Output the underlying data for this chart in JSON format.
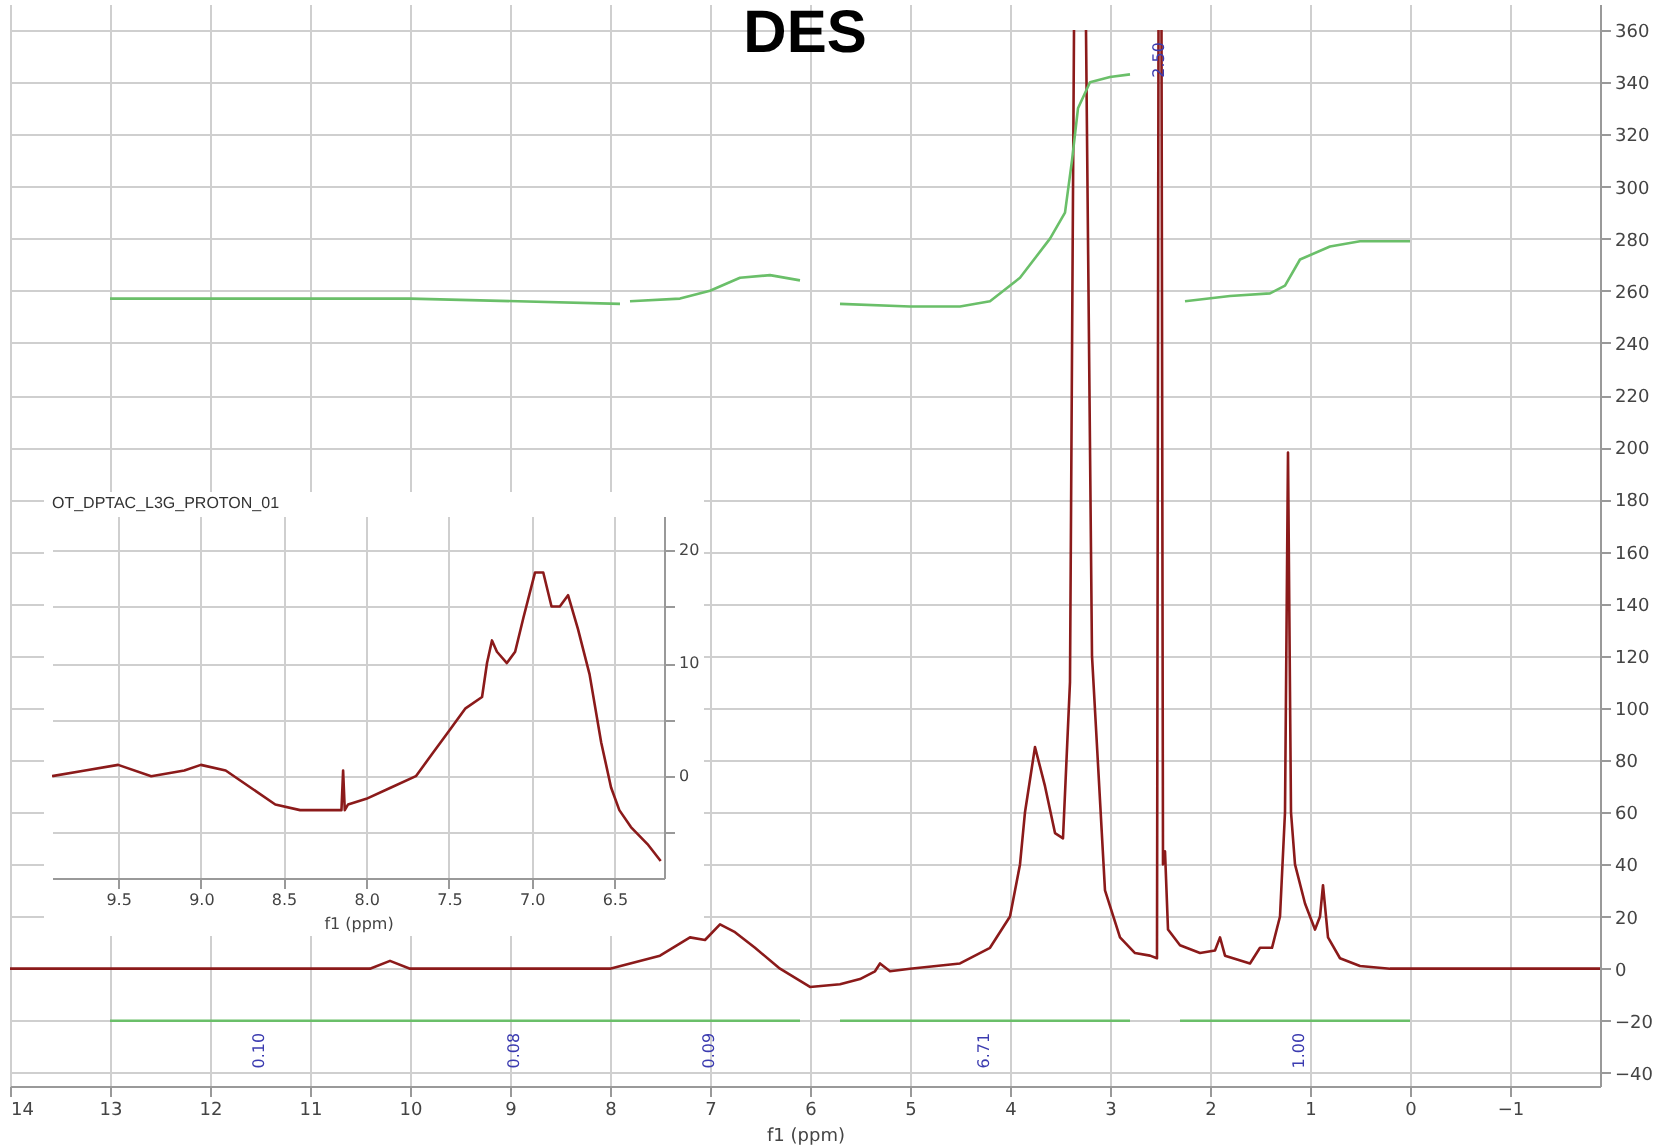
{
  "chart_data": [
    {
      "type": "line",
      "title": "DES",
      "xlabel": "f1 (ppm)",
      "xlim": [
        14,
        -1.9
      ],
      "xticks": [
        14,
        13,
        12,
        11,
        10,
        9,
        8,
        7,
        6,
        5,
        4,
        3,
        2,
        1,
        0,
        -1
      ],
      "ylim": [
        -45,
        370
      ],
      "yticks": [
        -40,
        -20,
        0,
        20,
        40,
        60,
        80,
        100,
        120,
        140,
        160,
        180,
        200,
        220,
        240,
        260,
        280,
        300,
        320,
        340,
        360
      ],
      "grid": true,
      "series": [
        {
          "color": "#8b1a1a",
          "x": [
            14,
            12,
            10.4,
            10.2,
            10,
            8.5,
            8,
            7.5,
            7.2,
            7.05,
            6.9,
            6.75,
            6.55,
            6.3,
            6.0,
            5.7,
            5.5,
            5.35,
            5.3,
            5.2,
            5.0,
            4.5,
            4.2,
            4.0,
            3.9,
            3.85,
            3.75,
            3.65,
            3.55,
            3.47,
            3.4,
            3.36,
            3.33,
            3.29,
            3.24,
            3.18,
            3.05,
            2.9,
            2.75,
            2.6,
            2.53,
            2.515,
            2.51,
            2.49,
            2.485,
            2.47,
            2.45,
            2.42,
            2.3,
            2.1,
            1.95,
            1.9,
            1.85,
            1.6,
            1.5,
            1.38,
            1.3,
            1.25,
            1.22,
            1.19,
            1.15,
            1.05,
            0.95,
            0.9,
            0.87,
            0.82,
            0.7,
            0.5,
            0.2,
            -1.9
          ],
          "values": [
            0,
            0,
            0,
            3,
            0,
            0,
            0,
            5,
            12,
            11,
            17,
            14,
            8,
            0,
            -7,
            -6,
            -4,
            -1,
            2,
            -1,
            0,
            2,
            8,
            20,
            40,
            60,
            85,
            70,
            52,
            50,
            110,
            360,
            null,
            null,
            360,
            120,
            30,
            12,
            6,
            5,
            4,
            360,
            null,
            null,
            360,
            40,
            45,
            15,
            9,
            6,
            7,
            12,
            5,
            2,
            8,
            8,
            20,
            60,
            198,
            60,
            40,
            25,
            15,
            20,
            32,
            12,
            4,
            1,
            0,
            0
          ]
        },
        {
          "color": "#6abf69",
          "x": [
            13,
            10,
            7.9
          ],
          "values": [
            257,
            257,
            255
          ]
        },
        {
          "color": "#6abf69",
          "x": [
            7.8,
            7.3,
            7.0,
            6.7,
            6.4,
            6.1
          ],
          "values": [
            256,
            257,
            260,
            265,
            266,
            264
          ]
        },
        {
          "color": "#6abf69",
          "x": [
            5.7,
            5.0,
            4.5,
            4.2,
            3.9,
            3.6,
            3.45,
            3.38,
            3.32,
            3.2,
            3.0,
            2.8
          ],
          "values": [
            255,
            254,
            254,
            256,
            265,
            280,
            290,
            310,
            330,
            340,
            342,
            343
          ]
        },
        {
          "color": "#6abf69",
          "x": [
            2.25,
            1.8,
            1.4,
            1.25,
            1.1,
            0.8,
            0.5,
            0
          ],
          "values": [
            256,
            258,
            259,
            262,
            272,
            277,
            279,
            279
          ]
        },
        {
          "color": "#6abf69",
          "x": [
            13,
            10,
            7.9,
            6.1
          ],
          "values": [
            -20,
            -20,
            -20,
            -20
          ]
        },
        {
          "color": "#6abf69",
          "x": [
            5.7,
            4.3,
            2.8
          ],
          "values": [
            -20,
            -20,
            -20
          ]
        },
        {
          "color": "#6abf69",
          "x": [
            2.3,
            1.1,
            0
          ],
          "values": [
            -20,
            -20,
            -20
          ]
        }
      ],
      "annotations": [
        {
          "text": "0.10",
          "x": 11.5,
          "y": -20
        },
        {
          "text": "0.08",
          "x": 8.95,
          "y": -20
        },
        {
          "text": "0.09",
          "x": 7.0,
          "y": -20
        },
        {
          "text": "6.71",
          "x": 4.25,
          "y": -20
        },
        {
          "text": "1.00",
          "x": 1.1,
          "y": -20
        },
        {
          "text": "2.50",
          "x": 2.5,
          "y": 360
        }
      ]
    },
    {
      "type": "line",
      "title": "OT_DPTAC_L3G_PROTON_01",
      "xlabel": "f1 (ppm)",
      "xlim": [
        9.9,
        6.2
      ],
      "xticks": [
        9.5,
        {
          "value": 9,
          "label": "9.0"
        },
        8.5,
        {
          "value": 8,
          "label": "8.0"
        },
        7.5,
        {
          "value": 7,
          "label": "7.0"
        },
        6.5
      ],
      "ylim": [
        -9,
        23
      ],
      "yticks": [
        {
          "value": -5,
          "label": null
        },
        0,
        {
          "value": 5,
          "label": null
        },
        10,
        {
          "value": 15,
          "label": null
        },
        20
      ],
      "grid": true,
      "series": [
        {
          "color": "#8b1a1a",
          "x": [
            9.9,
            9.7,
            9.5,
            9.3,
            9.1,
            9.0,
            8.85,
            8.7,
            8.55,
            8.4,
            8.25,
            8.15,
            8.14,
            8.13,
            8.11,
            8.0,
            7.85,
            7.7,
            7.6,
            7.5,
            7.4,
            7.3,
            7.27,
            7.24,
            7.21,
            7.15,
            7.1,
            7.05,
            6.98,
            6.93,
            6.88,
            6.83,
            6.78,
            6.72,
            6.65,
            6.58,
            6.52,
            6.47,
            6.4,
            6.3,
            6.22
          ],
          "values": [
            0,
            0.5,
            1,
            0,
            0.5,
            1,
            0.5,
            -1,
            -2.5,
            -3,
            -3,
            -3,
            0.5,
            -3,
            -2.5,
            -2,
            -1,
            0,
            2,
            4,
            6,
            7,
            10,
            12,
            11,
            10,
            11,
            14,
            18,
            18,
            15,
            15,
            16,
            13,
            9,
            3,
            -1,
            -3,
            -4.5,
            -6,
            -7.5
          ]
        }
      ]
    }
  ]
}
